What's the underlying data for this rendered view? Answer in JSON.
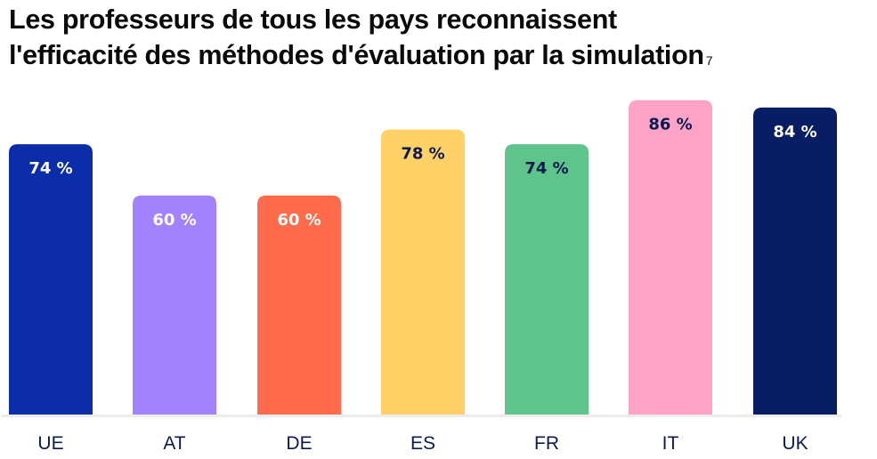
{
  "chart_data": {
    "type": "bar",
    "title": "Les professeurs de tous les pays reconnaissent l'efficacité des méthodes d'évaluation par la simulation",
    "title_line1": "Les professeurs de tous les pays reconnaissent",
    "title_line2": "l'efficacité des méthodes d'évaluation par la simulation",
    "footnote_marker": "7",
    "categories": [
      "UE",
      "AT",
      "DE",
      "ES",
      "FR",
      "IT",
      "UK"
    ],
    "values": [
      74,
      60,
      60,
      78,
      74,
      86,
      84
    ],
    "value_labels": [
      "74 %",
      "60 %",
      "60 %",
      "78 %",
      "74 %",
      "86 %",
      "84 %"
    ],
    "colors": [
      "#0b2daa",
      "#a282ff",
      "#ff6b4b",
      "#ffd166",
      "#5ec48b",
      "#ffa3c6",
      "#081d63"
    ],
    "label_colors": [
      "#ffffff",
      "#ffffff",
      "#ffffff",
      "#0b1a4f",
      "#0b1a4f",
      "#0b1a4f",
      "#ffffff"
    ],
    "xlabel": "",
    "ylabel": "",
    "ylim": [
      0,
      100
    ],
    "grid": false,
    "axis_color": "#ececec"
  }
}
